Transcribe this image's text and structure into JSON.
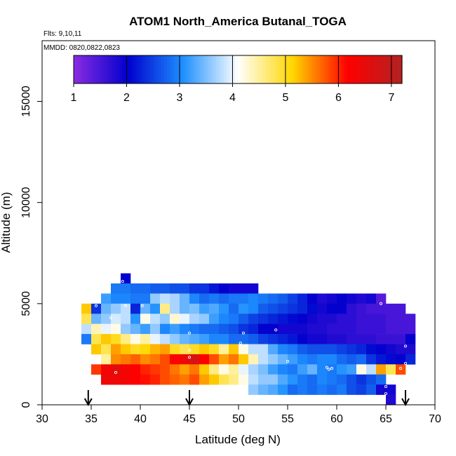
{
  "chart_data": {
    "type": "heatmap",
    "title": "ATOM1 North_America Butanal_TOGA",
    "flights_label": "Flts: 9,10,11",
    "dates_label": "MMDD: 0820,0822,0823",
    "xlabel": "Latitude (deg N)",
    "ylabel": "Altitude (m)",
    "xlim": [
      30,
      70
    ],
    "ylim": [
      0,
      18000
    ],
    "xticks": [
      "30",
      "35",
      "40",
      "45",
      "50",
      "55",
      "60",
      "65",
      "70"
    ],
    "yticks": [
      "0",
      "5000",
      "10000",
      "15000"
    ],
    "colorbar": {
      "range": [
        1,
        7.2
      ],
      "ticks": [
        "1",
        "2",
        "3",
        "4",
        "5",
        "6",
        "7"
      ],
      "colors": [
        "#8a2be2",
        "#0000cd",
        "#1e90ff",
        "#ffffff",
        "#ffd700",
        "#ff0000",
        "#b22222"
      ]
    },
    "arrows_latitude": [
      34.7,
      45.0,
      67.0
    ],
    "cell_size": {
      "lat_deg": 1,
      "alt_m": 500
    },
    "cells": [
      [
        38,
        6250,
        2.0
      ],
      [
        37,
        5750,
        2.9
      ],
      [
        38,
        5750,
        2.9
      ],
      [
        39,
        5750,
        2.8
      ],
      [
        40,
        5750,
        2.8
      ],
      [
        41,
        5750,
        2.7
      ],
      [
        42,
        5750,
        2.7
      ],
      [
        43,
        5750,
        2.6
      ],
      [
        44,
        5750,
        2.6
      ],
      [
        45,
        5750,
        2.4
      ],
      [
        46,
        5750,
        2.4
      ],
      [
        47,
        5750,
        2.2
      ],
      [
        48,
        5750,
        2.0
      ],
      [
        49,
        5750,
        1.9
      ],
      [
        50,
        5750,
        1.9
      ],
      [
        51,
        5750,
        1.9
      ],
      [
        36,
        5250,
        3.2
      ],
      [
        37,
        5250,
        3.0
      ],
      [
        38,
        5250,
        3.0
      ],
      [
        39,
        5250,
        2.9
      ],
      [
        40,
        5250,
        2.9
      ],
      [
        41,
        5250,
        3.6
      ],
      [
        42,
        5250,
        3.8
      ],
      [
        43,
        5250,
        3.7
      ],
      [
        44,
        5250,
        3.4
      ],
      [
        45,
        5250,
        3.0
      ],
      [
        46,
        5250,
        2.8
      ],
      [
        47,
        5250,
        2.9
      ],
      [
        48,
        5250,
        2.8
      ],
      [
        49,
        5250,
        2.9
      ],
      [
        50,
        5250,
        2.9
      ],
      [
        51,
        5250,
        3.0
      ],
      [
        52,
        5250,
        2.9
      ],
      [
        53,
        5250,
        2.8
      ],
      [
        54,
        5250,
        2.7
      ],
      [
        55,
        5250,
        2.5
      ],
      [
        56,
        5250,
        2.3
      ],
      [
        57,
        5250,
        2.0
      ],
      [
        58,
        5250,
        1.8
      ],
      [
        59,
        5250,
        1.9
      ],
      [
        60,
        5250,
        2.0
      ],
      [
        61,
        5250,
        1.9
      ],
      [
        62,
        5250,
        1.8
      ],
      [
        63,
        5250,
        1.9
      ],
      [
        64,
        5250,
        1.4
      ],
      [
        34,
        4750,
        5.2
      ],
      [
        35,
        4750,
        2.4
      ],
      [
        36,
        4750,
        3.4
      ],
      [
        37,
        4750,
        3.6
      ],
      [
        38,
        4750,
        3.8
      ],
      [
        39,
        4750,
        2.3
      ],
      [
        40,
        4750,
        3.4
      ],
      [
        41,
        4750,
        3.1
      ],
      [
        42,
        4750,
        4.6
      ],
      [
        43,
        4750,
        3.7
      ],
      [
        44,
        4750,
        3.4
      ],
      [
        45,
        4750,
        3.5
      ],
      [
        46,
        4750,
        3.2
      ],
      [
        47,
        4750,
        3.3
      ],
      [
        48,
        4750,
        3.1
      ],
      [
        49,
        4750,
        2.8
      ],
      [
        50,
        4750,
        3.1
      ],
      [
        51,
        4750,
        3.0
      ],
      [
        52,
        4750,
        2.7
      ],
      [
        53,
        4750,
        2.6
      ],
      [
        54,
        4750,
        2.5
      ],
      [
        55,
        4750,
        2.4
      ],
      [
        56,
        4750,
        2.3
      ],
      [
        57,
        4750,
        2.1
      ],
      [
        58,
        4750,
        1.9
      ],
      [
        59,
        4750,
        2.0
      ],
      [
        60,
        4750,
        2.0
      ],
      [
        61,
        4750,
        1.7
      ],
      [
        62,
        4750,
        1.6
      ],
      [
        63,
        4750,
        1.5
      ],
      [
        64,
        4750,
        1.5
      ],
      [
        65,
        4750,
        1.5
      ],
      [
        66,
        4750,
        1.5
      ],
      [
        34,
        4250,
        4.8
      ],
      [
        35,
        4250,
        3.4
      ],
      [
        36,
        4250,
        3.6
      ],
      [
        37,
        4250,
        3.9
      ],
      [
        38,
        4250,
        3.8
      ],
      [
        39,
        4250,
        3.1
      ],
      [
        40,
        4250,
        4.2
      ],
      [
        41,
        4250,
        3.8
      ],
      [
        42,
        4250,
        3.6
      ],
      [
        43,
        4250,
        4.3
      ],
      [
        44,
        4250,
        4.0
      ],
      [
        45,
        4250,
        3.7
      ],
      [
        46,
        4250,
        3.6
      ],
      [
        47,
        4250,
        3.2
      ],
      [
        48,
        4250,
        3.0
      ],
      [
        49,
        4250,
        2.9
      ],
      [
        50,
        4250,
        2.7
      ],
      [
        51,
        4250,
        2.5
      ],
      [
        52,
        4250,
        2.4
      ],
      [
        53,
        4250,
        2.3
      ],
      [
        54,
        4250,
        2.2
      ],
      [
        55,
        4250,
        2.1
      ],
      [
        56,
        4250,
        2.0
      ],
      [
        57,
        4250,
        1.9
      ],
      [
        58,
        4250,
        1.8
      ],
      [
        59,
        4250,
        1.8
      ],
      [
        60,
        4250,
        1.7
      ],
      [
        61,
        4250,
        1.7
      ],
      [
        62,
        4250,
        1.6
      ],
      [
        63,
        4250,
        1.6
      ],
      [
        64,
        4250,
        1.6
      ],
      [
        65,
        4250,
        1.5
      ],
      [
        66,
        4250,
        1.5
      ],
      [
        67,
        4250,
        1.5
      ],
      [
        34,
        3750,
        3.8
      ],
      [
        35,
        3750,
        4.4
      ],
      [
        36,
        3750,
        4.0
      ],
      [
        37,
        3750,
        4.2
      ],
      [
        38,
        3750,
        3.6
      ],
      [
        39,
        3750,
        3.4
      ],
      [
        40,
        3750,
        3.2
      ],
      [
        41,
        3750,
        3.6
      ],
      [
        42,
        3750,
        3.0
      ],
      [
        43,
        3750,
        3.2
      ],
      [
        44,
        3750,
        3.0
      ],
      [
        45,
        3750,
        2.9
      ],
      [
        46,
        3750,
        2.8
      ],
      [
        47,
        3750,
        2.8
      ],
      [
        48,
        3750,
        2.7
      ],
      [
        49,
        3750,
        2.6
      ],
      [
        50,
        3750,
        2.4
      ],
      [
        51,
        3750,
        2.3
      ],
      [
        52,
        3750,
        2.0
      ],
      [
        53,
        3750,
        2.0
      ],
      [
        54,
        3750,
        1.9
      ],
      [
        55,
        3750,
        1.9
      ],
      [
        56,
        3750,
        1.9
      ],
      [
        57,
        3750,
        1.8
      ],
      [
        58,
        3750,
        1.8
      ],
      [
        59,
        3750,
        1.7
      ],
      [
        60,
        3750,
        1.7
      ],
      [
        61,
        3750,
        1.7
      ],
      [
        62,
        3750,
        1.6
      ],
      [
        63,
        3750,
        1.6
      ],
      [
        64,
        3750,
        1.6
      ],
      [
        65,
        3750,
        1.5
      ],
      [
        66,
        3750,
        1.5
      ],
      [
        67,
        3750,
        1.5
      ],
      [
        34,
        3250,
        2.9
      ],
      [
        35,
        3250,
        4.8
      ],
      [
        36,
        3250,
        5.2
      ],
      [
        37,
        3250,
        5.0
      ],
      [
        38,
        3250,
        4.6
      ],
      [
        39,
        3250,
        4.2
      ],
      [
        40,
        3250,
        4.5
      ],
      [
        41,
        3250,
        4.0
      ],
      [
        42,
        3250,
        3.8
      ],
      [
        43,
        3250,
        3.6
      ],
      [
        44,
        3250,
        3.4
      ],
      [
        45,
        3250,
        3.3
      ],
      [
        46,
        3250,
        3.2
      ],
      [
        47,
        3250,
        3.0
      ],
      [
        48,
        3250,
        3.0
      ],
      [
        49,
        3250,
        2.8
      ],
      [
        50,
        3250,
        2.8
      ],
      [
        51,
        3250,
        2.7
      ],
      [
        52,
        3250,
        2.5
      ],
      [
        53,
        3250,
        2.4
      ],
      [
        54,
        3250,
        2.3
      ],
      [
        55,
        3250,
        2.2
      ],
      [
        56,
        3250,
        2.0
      ],
      [
        57,
        3250,
        1.9
      ],
      [
        58,
        3250,
        1.9
      ],
      [
        59,
        3250,
        1.8
      ],
      [
        60,
        3250,
        1.8
      ],
      [
        61,
        3250,
        1.7
      ],
      [
        62,
        3250,
        1.7
      ],
      [
        63,
        3250,
        1.7
      ],
      [
        64,
        3250,
        1.6
      ],
      [
        65,
        3250,
        1.6
      ],
      [
        66,
        3250,
        1.6
      ],
      [
        67,
        3250,
        2.0
      ],
      [
        35,
        2750,
        5.2
      ],
      [
        36,
        2750,
        4.8
      ],
      [
        37,
        2750,
        5.4
      ],
      [
        38,
        2750,
        5.2
      ],
      [
        39,
        2750,
        5.0
      ],
      [
        40,
        2750,
        5.1
      ],
      [
        41,
        2750,
        5.3
      ],
      [
        42,
        2750,
        5.4
      ],
      [
        43,
        2750,
        5.0
      ],
      [
        44,
        2750,
        4.8
      ],
      [
        45,
        2750,
        5.0
      ],
      [
        46,
        2750,
        5.2
      ],
      [
        47,
        2750,
        5.0
      ],
      [
        48,
        2750,
        4.5
      ],
      [
        49,
        2750,
        5.2
      ],
      [
        50,
        2750,
        4.2
      ],
      [
        51,
        2750,
        3.8
      ],
      [
        52,
        2750,
        3.8
      ],
      [
        53,
        2750,
        3.3
      ],
      [
        54,
        2750,
        3.0
      ],
      [
        55,
        2750,
        2.9
      ],
      [
        56,
        2750,
        2.7
      ],
      [
        57,
        2750,
        2.6
      ],
      [
        58,
        2750,
        2.6
      ],
      [
        59,
        2750,
        2.6
      ],
      [
        60,
        2750,
        2.5
      ],
      [
        61,
        2750,
        2.4
      ],
      [
        62,
        2750,
        2.3
      ],
      [
        63,
        2750,
        2.1
      ],
      [
        64,
        2750,
        2.0
      ],
      [
        65,
        2750,
        1.9
      ],
      [
        66,
        2750,
        1.8
      ],
      [
        67,
        2750,
        1.8
      ],
      [
        36,
        2250,
        4.5
      ],
      [
        37,
        2250,
        5.5
      ],
      [
        38,
        2250,
        5.6
      ],
      [
        39,
        2250,
        5.7
      ],
      [
        40,
        2250,
        5.5
      ],
      [
        41,
        2250,
        5.6
      ],
      [
        42,
        2250,
        5.8
      ],
      [
        43,
        2250,
        6.2
      ],
      [
        44,
        2250,
        6.4
      ],
      [
        45,
        2250,
        6.7
      ],
      [
        46,
        2250,
        6.2
      ],
      [
        47,
        2250,
        5.8
      ],
      [
        48,
        2250,
        5.4
      ],
      [
        49,
        2250,
        5.6
      ],
      [
        50,
        2250,
        5.2
      ],
      [
        51,
        2250,
        4.4
      ],
      [
        52,
        2250,
        3.8
      ],
      [
        53,
        2250,
        3.6
      ],
      [
        54,
        2250,
        3.4
      ],
      [
        55,
        2250,
        3.2
      ],
      [
        56,
        2250,
        3.0
      ],
      [
        57,
        2250,
        2.9
      ],
      [
        58,
        2250,
        3.0
      ],
      [
        59,
        2250,
        3.0
      ],
      [
        60,
        2250,
        2.8
      ],
      [
        61,
        2250,
        2.7
      ],
      [
        62,
        2250,
        2.8
      ],
      [
        63,
        2250,
        2.4
      ],
      [
        64,
        2250,
        2.2
      ],
      [
        65,
        2250,
        2.1
      ],
      [
        66,
        2250,
        2.0
      ],
      [
        67,
        2250,
        2.3
      ],
      [
        35,
        1750,
        5.9
      ],
      [
        36,
        1750,
        6.3
      ],
      [
        37,
        1750,
        6.5
      ],
      [
        38,
        1750,
        6.3
      ],
      [
        39,
        1750,
        6.2
      ],
      [
        40,
        1750,
        6.0
      ],
      [
        41,
        1750,
        5.9
      ],
      [
        42,
        1750,
        5.8
      ],
      [
        43,
        1750,
        5.6
      ],
      [
        44,
        1750,
        5.4
      ],
      [
        45,
        1750,
        5.6
      ],
      [
        46,
        1750,
        5.2
      ],
      [
        47,
        1750,
        4.6
      ],
      [
        48,
        1750,
        4.2
      ],
      [
        49,
        1750,
        4.5
      ],
      [
        50,
        1750,
        4.0
      ],
      [
        51,
        1750,
        3.7
      ],
      [
        52,
        1750,
        3.5
      ],
      [
        53,
        1750,
        3.2
      ],
      [
        54,
        1750,
        3.0
      ],
      [
        55,
        1750,
        2.9
      ],
      [
        56,
        1750,
        3.2
      ],
      [
        57,
        1750,
        3.4
      ],
      [
        58,
        1750,
        3.0
      ],
      [
        59,
        1750,
        2.9
      ],
      [
        60,
        1750,
        3.1
      ],
      [
        61,
        1750,
        3.2
      ],
      [
        62,
        1750,
        4.2
      ],
      [
        63,
        1750,
        3.8
      ],
      [
        64,
        1750,
        5.4
      ],
      [
        65,
        1750,
        4.8
      ],
      [
        66,
        1750,
        5.8
      ],
      [
        36,
        1250,
        6.4
      ],
      [
        37,
        1250,
        6.4
      ],
      [
        38,
        1250,
        6.3
      ],
      [
        39,
        1250,
        6.2
      ],
      [
        40,
        1250,
        6.1
      ],
      [
        41,
        1250,
        6.0
      ],
      [
        42,
        1250,
        5.8
      ],
      [
        43,
        1250,
        5.7
      ],
      [
        44,
        1250,
        5.6
      ],
      [
        45,
        1250,
        5.8
      ],
      [
        46,
        1250,
        5.4
      ],
      [
        47,
        1250,
        5.2
      ],
      [
        48,
        1250,
        4.8
      ],
      [
        49,
        1250,
        4.6
      ],
      [
        50,
        1250,
        4.2
      ],
      [
        51,
        1250,
        3.8
      ],
      [
        52,
        1250,
        3.6
      ],
      [
        53,
        1250,
        3.6
      ],
      [
        54,
        1250,
        3.3
      ],
      [
        55,
        1250,
        3.1
      ],
      [
        56,
        1250,
        2.9
      ],
      [
        57,
        1250,
        2.8
      ],
      [
        58,
        1250,
        3.0
      ],
      [
        59,
        1250,
        2.9
      ],
      [
        60,
        1250,
        2.8
      ],
      [
        61,
        1250,
        2.6
      ],
      [
        62,
        1250,
        2.4
      ],
      [
        63,
        1250,
        2.6
      ],
      [
        64,
        1250,
        2.8
      ],
      [
        51,
        750,
        3.6
      ],
      [
        52,
        750,
        3.4
      ],
      [
        53,
        750,
        3.3
      ],
      [
        54,
        750,
        3.1
      ],
      [
        55,
        750,
        2.8
      ],
      [
        56,
        750,
        2.9
      ],
      [
        57,
        750,
        2.8
      ],
      [
        58,
        750,
        2.9
      ],
      [
        59,
        750,
        2.8
      ],
      [
        60,
        750,
        2.9
      ],
      [
        61,
        750,
        2.6
      ],
      [
        62,
        750,
        2.5
      ],
      [
        63,
        750,
        2.7
      ],
      [
        64,
        750,
        1.9
      ],
      [
        65,
        750,
        1.9
      ],
      [
        65,
        250,
        1.8
      ]
    ],
    "sample_points": [
      [
        38.2,
        6100
      ],
      [
        35.5,
        4900
      ],
      [
        38.5,
        4900
      ],
      [
        40.2,
        4900
      ],
      [
        37.0,
        4300
      ],
      [
        45.0,
        3550
      ],
      [
        45.0,
        2700
      ],
      [
        50.5,
        3550
      ],
      [
        50.2,
        3050
      ],
      [
        53.8,
        3700
      ],
      [
        45.0,
        2350
      ],
      [
        55.0,
        2150
      ],
      [
        59.0,
        1850
      ],
      [
        59.2,
        1750
      ],
      [
        59.5,
        1800
      ],
      [
        64.5,
        5000
      ],
      [
        67.0,
        2900
      ],
      [
        67.0,
        2050
      ],
      [
        66.5,
        1800
      ],
      [
        65.0,
        900
      ],
      [
        65.0,
        550
      ],
      [
        37.5,
        1600
      ]
    ]
  }
}
